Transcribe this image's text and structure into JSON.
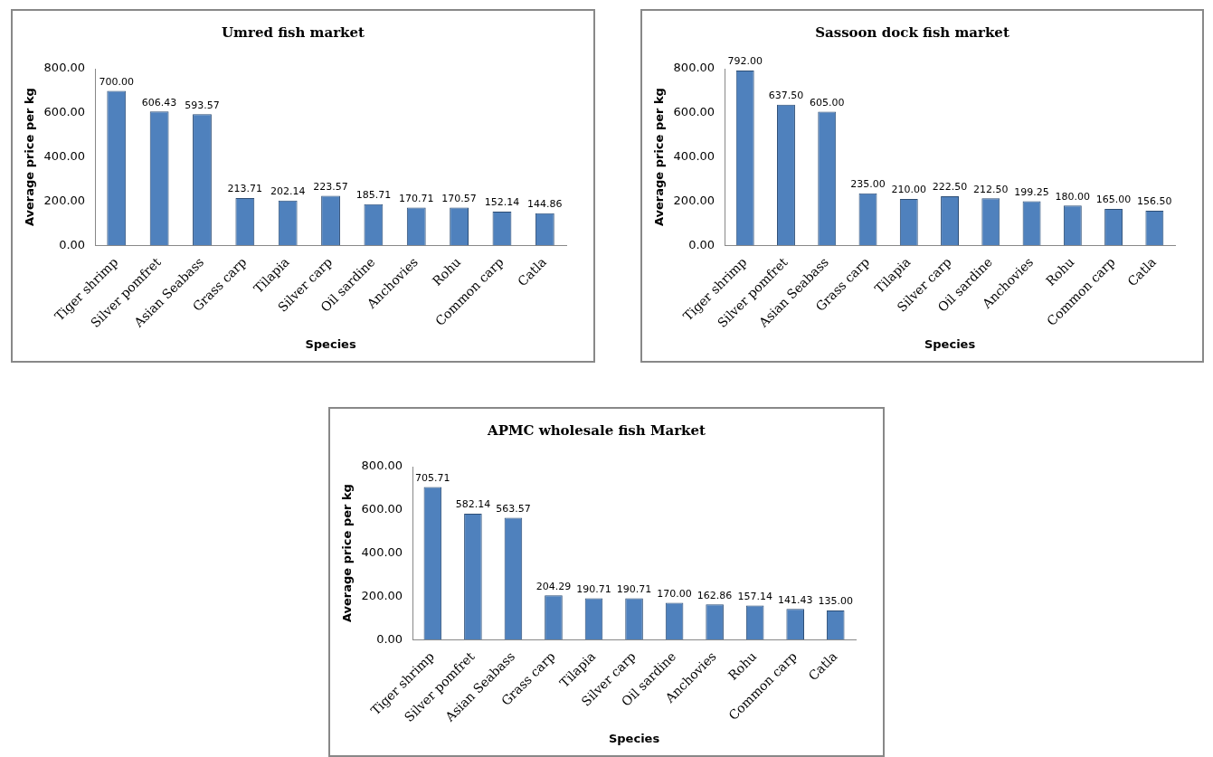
{
  "chart_data": [
    {
      "type": "bar",
      "title": "Umred fish market",
      "xlabel": "Species",
      "ylabel": "Average price per kg",
      "categories": [
        "Tiger shrimp",
        "Silver pomfret",
        "Asian Seabass",
        "Grass carp",
        "Tilapia",
        "Silver carp",
        "Oil sardine",
        "Anchovies",
        "Rohu",
        "Common carp",
        "Catla"
      ],
      "values": [
        700,
        606.43,
        593.57,
        213.71,
        202.14,
        223.57,
        185.71,
        170.71,
        170.57,
        152.14,
        144.86
      ],
      "value_labels": [
        "700.00",
        "606.43",
        "593.57",
        "213.71",
        "202.14",
        "223.57",
        "185.71",
        "170.71",
        "170.57",
        "152.14",
        "144.86"
      ],
      "color": "#4f81bd",
      "ylim": [
        0,
        800
      ],
      "yticks": [
        {
          "value": 0,
          "label": "0.00"
        },
        {
          "value": 200,
          "label": "200.00"
        },
        {
          "value": 400,
          "label": "400.00"
        },
        {
          "value": 600,
          "label": "600.00"
        },
        {
          "value": 800,
          "label": "800.00"
        }
      ],
      "grid": false,
      "legend": false
    },
    {
      "type": "bar",
      "title": "Sassoon dock fish market",
      "xlabel": "Species",
      "ylabel": "Average price per kg",
      "categories": [
        "Tiger shrimp",
        "Silver pomfret",
        "Asian Seabass",
        "Grass carp",
        "Tilapia",
        "Silver carp",
        "Oil sardine",
        "Anchovies",
        "Rohu",
        "Common carp",
        "Catla"
      ],
      "values": [
        792,
        637.5,
        605,
        235,
        210,
        222.5,
        212.5,
        199.25,
        180,
        165,
        156.5
      ],
      "value_labels": [
        "792.00",
        "637.50",
        "605.00",
        "235.00",
        "210.00",
        "222.50",
        "212.50",
        "199.25",
        "180.00",
        "165.00",
        "156.50"
      ],
      "color": "#4f81bd",
      "ylim": [
        0,
        800
      ],
      "yticks": [
        {
          "value": 0,
          "label": "0.00"
        },
        {
          "value": 200,
          "label": "200.00"
        },
        {
          "value": 400,
          "label": "400.00"
        },
        {
          "value": 600,
          "label": "600.00"
        },
        {
          "value": 800,
          "label": "800.00"
        }
      ],
      "grid": false,
      "legend": false
    },
    {
      "type": "bar",
      "title": "APMC wholesale fish Market",
      "xlabel": "Species",
      "ylabel": "Average price per kg",
      "categories": [
        "Tiger shrimp",
        "Silver pomfret",
        "Asian Seabass",
        "Grass carp",
        "Tilapia",
        "Silver carp",
        "Oil sardine",
        "Anchovies",
        "Rohu",
        "Common carp",
        "Catla"
      ],
      "values": [
        705.71,
        582.14,
        563.57,
        204.29,
        190.71,
        190.71,
        170,
        162.86,
        157.14,
        141.43,
        135
      ],
      "value_labels": [
        "705.71",
        "582.14",
        "563.57",
        "204.29",
        "190.71",
        "190.71",
        "170.00",
        "162.86",
        "157.14",
        "141.43",
        "135.00"
      ],
      "color": "#4f81bd",
      "ylim": [
        0,
        800
      ],
      "yticks": [
        {
          "value": 0,
          "label": "0.00"
        },
        {
          "value": 200,
          "label": "200.00"
        },
        {
          "value": 400,
          "label": "400.00"
        },
        {
          "value": 600,
          "label": "600.00"
        },
        {
          "value": 800,
          "label": "800.00"
        }
      ],
      "grid": false,
      "legend": false
    }
  ]
}
